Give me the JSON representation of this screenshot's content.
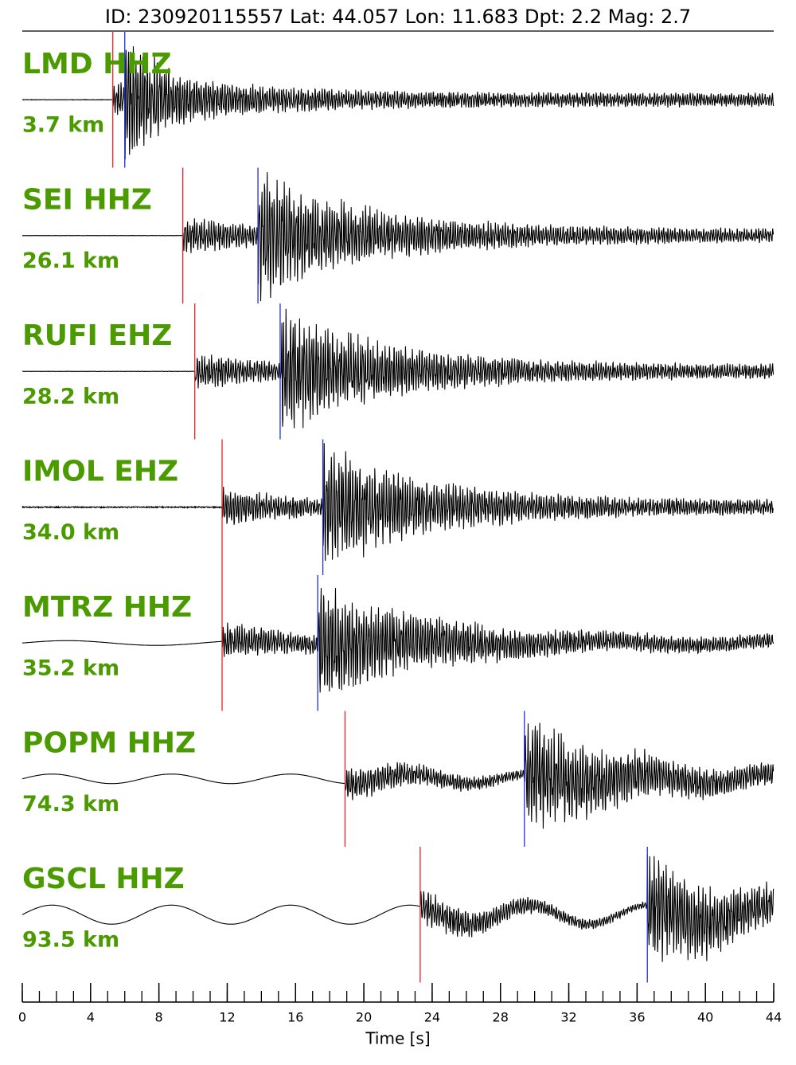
{
  "chart_data": {
    "type": "seismogram",
    "title": "ID: 230920115557 Lat:  44.057 Lon:  11.683 Dpt:      2.2 Mag:   2.7",
    "xlabel": "Time [s]",
    "xlim": [
      0,
      44
    ],
    "xticks": [
      0,
      4,
      8,
      12,
      16,
      20,
      24,
      28,
      32,
      36,
      40,
      44
    ],
    "xminorticks": [
      0,
      1,
      2,
      3,
      4,
      5,
      6,
      7,
      8,
      9,
      10,
      11,
      12,
      13,
      14,
      15,
      16,
      17,
      18,
      19,
      20,
      21,
      22,
      23,
      24,
      25,
      26,
      27,
      28,
      29,
      30,
      31,
      32,
      33,
      34,
      35,
      36,
      37,
      38,
      39,
      40,
      41,
      42,
      43,
      44
    ],
    "label_color": "#4a9a00",
    "p_color": "#e8202a",
    "s_color": "#2030e0",
    "traces": [
      {
        "name": "LMD HHZ",
        "distance": "3.7 km",
        "p_pick": 5.3,
        "s_pick": 6.0
      },
      {
        "name": "SEI HHZ",
        "distance": "26.1 km",
        "p_pick": 9.4,
        "s_pick": 13.8
      },
      {
        "name": "RUFI EHZ",
        "distance": "28.2 km",
        "p_pick": 10.1,
        "s_pick": 15.1
      },
      {
        "name": "IMOL EHZ",
        "distance": "34.0 km",
        "p_pick": 11.7,
        "s_pick": 17.6
      },
      {
        "name": "MTRZ HHZ",
        "distance": "35.2 km",
        "p_pick": 11.7,
        "s_pick": 17.3
      },
      {
        "name": "POPM HHZ",
        "distance": "74.3 km",
        "p_pick": 18.9,
        "s_pick": 29.4
      },
      {
        "name": "GSCL HHZ",
        "distance": "93.5 km",
        "p_pick": 23.3,
        "s_pick": 36.6
      }
    ]
  }
}
